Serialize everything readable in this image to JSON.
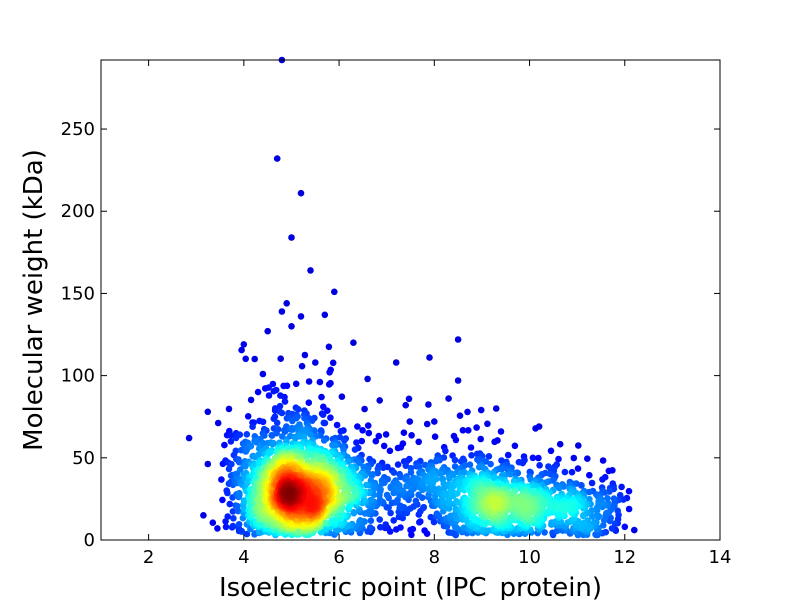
{
  "chart_data": {
    "type": "scatter",
    "title": "",
    "xlabel": "Isoelectric point (IPC_protein)",
    "ylabel": "Molecular weight (kDa)",
    "xlim": [
      1,
      14
    ],
    "ylim": [
      0,
      292
    ],
    "x_ticks": [
      2,
      4,
      6,
      8,
      10,
      12,
      14
    ],
    "y_ticks": [
      0,
      50,
      100,
      150,
      200,
      250
    ],
    "grid": false,
    "legend": "none",
    "colormap": "jet (point density)",
    "colors": {
      "low_density": "#0000cc",
      "high_density": "#cc0000"
    },
    "outliers": [
      {
        "x": 4.8,
        "y": 292
      },
      {
        "x": 4.7,
        "y": 232
      },
      {
        "x": 5.2,
        "y": 211
      },
      {
        "x": 5.0,
        "y": 184
      },
      {
        "x": 5.4,
        "y": 164
      },
      {
        "x": 5.9,
        "y": 151
      },
      {
        "x": 4.9,
        "y": 144
      },
      {
        "x": 5.7,
        "y": 137
      },
      {
        "x": 5.2,
        "y": 136
      },
      {
        "x": 4.8,
        "y": 139
      },
      {
        "x": 4.5,
        "y": 127
      },
      {
        "x": 5.0,
        "y": 130
      },
      {
        "x": 4.0,
        "y": 119
      },
      {
        "x": 6.3,
        "y": 120
      },
      {
        "x": 8.5,
        "y": 122
      },
      {
        "x": 7.2,
        "y": 108
      },
      {
        "x": 7.9,
        "y": 111
      },
      {
        "x": 5.5,
        "y": 108
      },
      {
        "x": 4.4,
        "y": 101
      },
      {
        "x": 6.6,
        "y": 98
      },
      {
        "x": 8.5,
        "y": 97
      },
      {
        "x": 5.8,
        "y": 102
      },
      {
        "x": 4.3,
        "y": 90
      },
      {
        "x": 5.1,
        "y": 95
      },
      {
        "x": 2.85,
        "y": 62
      },
      {
        "x": 3.15,
        "y": 15
      },
      {
        "x": 12.2,
        "y": 6
      },
      {
        "x": 12.0,
        "y": 8
      },
      {
        "x": 11.8,
        "y": 10
      },
      {
        "x": 9.3,
        "y": 80
      },
      {
        "x": 10.2,
        "y": 69
      },
      {
        "x": 7.4,
        "y": 82
      },
      {
        "x": 8.0,
        "y": 72
      },
      {
        "x": 8.3,
        "y": 86
      }
    ],
    "clusters": [
      {
        "cx": 5.0,
        "cy": 29,
        "sx": 0.55,
        "sy": 16,
        "n": 1500
      },
      {
        "cx": 5.1,
        "cy": 55,
        "sx": 0.7,
        "sy": 22,
        "n": 250
      },
      {
        "cx": 6.0,
        "cy": 28,
        "sx": 0.6,
        "sy": 14,
        "n": 250
      },
      {
        "cx": 7.3,
        "cy": 30,
        "sx": 0.9,
        "sy": 14,
        "n": 250
      },
      {
        "cx": 9.2,
        "cy": 23,
        "sx": 0.55,
        "sy": 12,
        "n": 500
      },
      {
        "cx": 10.4,
        "cy": 20,
        "sx": 0.65,
        "sy": 11,
        "n": 350
      },
      {
        "cx": 8.4,
        "cy": 44,
        "sx": 1.3,
        "sy": 15,
        "n": 120
      },
      {
        "cx": 11.3,
        "cy": 18,
        "sx": 0.4,
        "sy": 11,
        "n": 100
      }
    ]
  }
}
